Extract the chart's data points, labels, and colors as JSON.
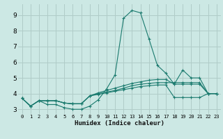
{
  "xlabel": "Humidex (Indice chaleur)",
  "xlim": [
    -0.5,
    23.5
  ],
  "ylim": [
    2.7,
    9.7
  ],
  "yticks": [
    3,
    4,
    5,
    6,
    7,
    8,
    9
  ],
  "xticks": [
    0,
    1,
    2,
    3,
    4,
    5,
    6,
    7,
    8,
    9,
    10,
    11,
    12,
    13,
    14,
    15,
    16,
    17,
    18,
    19,
    20,
    21,
    22,
    23
  ],
  "bg_color": "#cce8e4",
  "grid_color": "#b0ccc8",
  "line_color": "#1a7a6e",
  "series": [
    {
      "x": [
        0,
        1,
        2,
        3,
        4,
        5,
        6,
        7,
        8,
        9,
        10,
        11,
        12,
        13,
        14,
        15,
        16,
        17,
        18,
        19,
        20,
        21,
        22,
        23
      ],
      "y": [
        3.7,
        3.2,
        3.55,
        3.3,
        3.3,
        3.1,
        3.0,
        3.0,
        3.2,
        3.6,
        4.3,
        5.2,
        8.8,
        9.3,
        9.15,
        7.5,
        5.8,
        5.3,
        4.6,
        5.5,
        5.0,
        5.0,
        4.0,
        4.0
      ]
    },
    {
      "x": [
        0,
        1,
        2,
        3,
        4,
        5,
        6,
        7,
        8,
        9,
        10,
        11,
        12,
        13,
        14,
        15,
        16,
        17,
        18,
        19,
        20,
        21,
        22,
        23
      ],
      "y": [
        3.7,
        3.2,
        3.55,
        3.55,
        3.55,
        3.4,
        3.35,
        3.35,
        3.85,
        4.05,
        4.2,
        4.35,
        4.5,
        4.65,
        4.75,
        4.85,
        4.9,
        4.9,
        4.6,
        4.6,
        4.6,
        4.6,
        4.0,
        4.0
      ]
    },
    {
      "x": [
        0,
        1,
        2,
        3,
        4,
        5,
        6,
        7,
        8,
        9,
        10,
        11,
        12,
        13,
        14,
        15,
        16,
        17,
        18,
        19,
        20,
        21,
        22,
        23
      ],
      "y": [
        3.7,
        3.2,
        3.55,
        3.55,
        3.55,
        3.4,
        3.35,
        3.35,
        3.85,
        4.0,
        4.1,
        4.2,
        4.35,
        4.5,
        4.6,
        4.65,
        4.7,
        4.7,
        4.7,
        4.7,
        4.7,
        4.7,
        4.0,
        4.0
      ]
    },
    {
      "x": [
        0,
        1,
        2,
        3,
        4,
        5,
        6,
        7,
        8,
        9,
        10,
        11,
        12,
        13,
        14,
        15,
        16,
        17,
        18,
        19,
        20,
        21,
        22,
        23
      ],
      "y": [
        3.7,
        3.2,
        3.55,
        3.55,
        3.55,
        3.4,
        3.35,
        3.35,
        3.85,
        3.95,
        4.05,
        4.15,
        4.25,
        4.35,
        4.45,
        4.5,
        4.55,
        4.55,
        3.75,
        3.75,
        3.75,
        3.75,
        4.0,
        4.0
      ]
    }
  ]
}
